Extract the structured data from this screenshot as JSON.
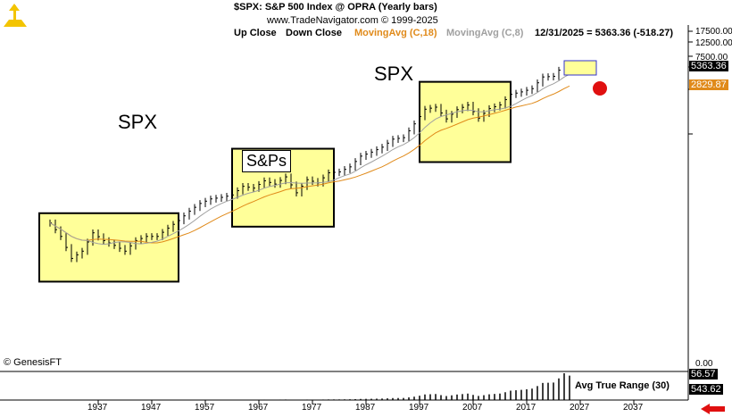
{
  "header": {
    "title": "$SPX:  S&P 500 Index @ OPRA  (Yearly bars)",
    "copyright": "www.TradeNavigator.com © 1999-2025",
    "legend_up": "Up Close",
    "legend_down": "Down Close",
    "legend_ma18": "MovingAvg (C,18)",
    "legend_ma8": "MovingAvg (C,8)",
    "last_quote": "12/31/2025 = 5363.36 (-518.27)"
  },
  "annotations": {
    "spx_left": "SPX",
    "spx_right": "SPX",
    "sps_box": "S&Ps",
    "credit": "© GenesisFT"
  },
  "price_tags": {
    "last": "5363.36",
    "ma18": "2829.87"
  },
  "indicator": {
    "label": "Avg True Range (30)",
    "tag_top": "56.57",
    "tag_bottom": "543.62",
    "zero_label": "0.00"
  },
  "colors": {
    "box_fill": "#ffff99",
    "ma18": "#e08a1a",
    "ma8": "#a0a0a0",
    "marker": "#e01010",
    "arrow": "#e01010"
  },
  "chart_data": {
    "type": "line",
    "scale": "log",
    "x_ticks": [
      "1937",
      "1947",
      "1957",
      "1967",
      "1977",
      "1987",
      "1997",
      "2007",
      "2017",
      "2027",
      "2037"
    ],
    "y_ticks": [
      "17500.00",
      "12500.00",
      "7500.00"
    ],
    "series": [
      {
        "name": "Yearly bars",
        "x": [
          1928,
          1930,
          1932,
          1934,
          1936,
          1938,
          1940,
          1942,
          1944,
          1946,
          1948,
          1950,
          1952,
          1954,
          1956,
          1958,
          1960,
          1962,
          1964,
          1966,
          1968,
          1970,
          1972,
          1974,
          1976,
          1978,
          1980,
          1982,
          1984,
          1986,
          1988,
          1990,
          1992,
          1994,
          1996,
          1998,
          2000,
          2002,
          2004,
          2006,
          2008,
          2010,
          2012,
          2014,
          2016,
          2018,
          2020,
          2022,
          2024,
          2025
        ],
        "values": [
          24,
          15,
          7,
          9,
          17,
          13,
          11,
          9,
          13,
          15,
          15,
          20,
          26,
          36,
          47,
          55,
          58,
          63,
          85,
          80,
          103,
          92,
          118,
          68,
          107,
          96,
          136,
          140,
          167,
          242,
          278,
          330,
          436,
          459,
          740,
          1229,
          1320,
          880,
          1212,
          1418,
          903,
          1258,
          1426,
          2059,
          2239,
          2507,
          3756,
          3840,
          5882,
          5363
        ]
      },
      {
        "name": "MovingAvg (C,18)"
      },
      {
        "name": "MovingAvg (C,8)"
      }
    ]
  }
}
